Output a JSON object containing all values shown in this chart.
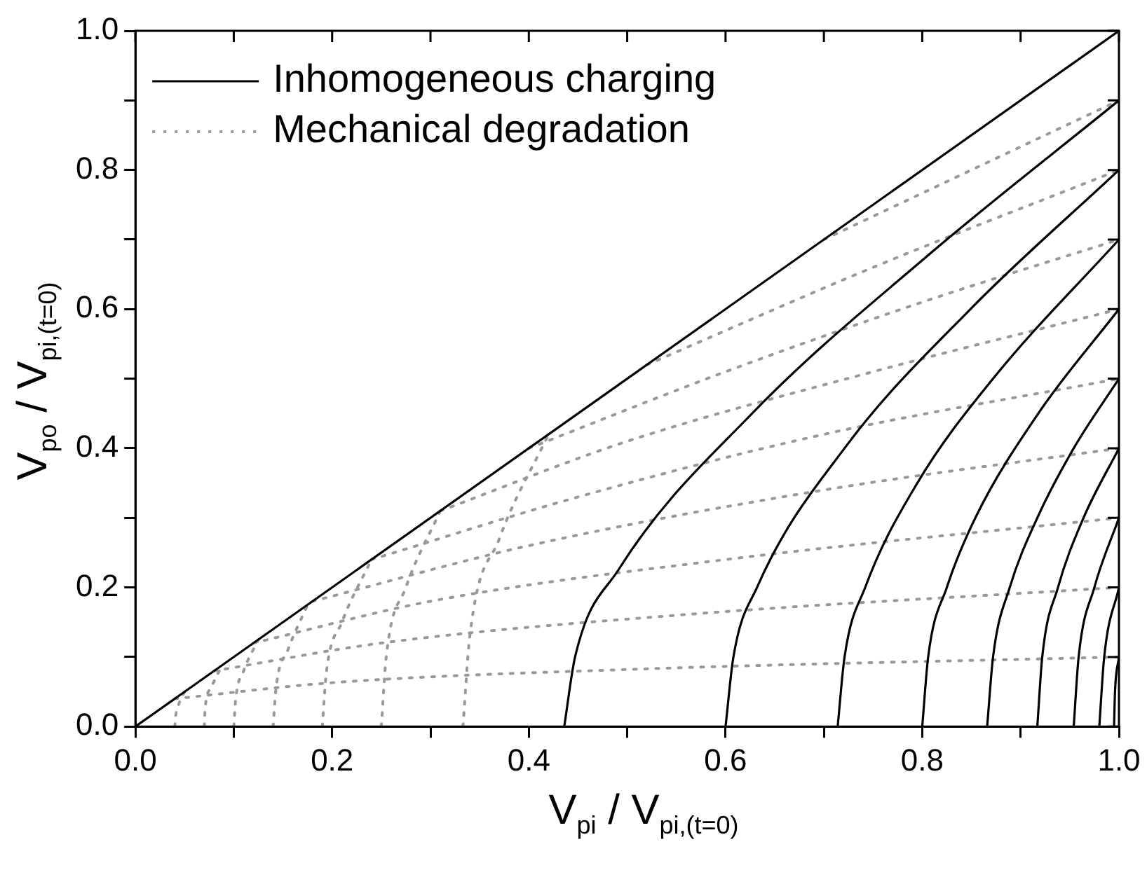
{
  "chart_data": {
    "type": "line",
    "xlabel": "V$_{pi}$ / V$_{pi,(t=0)}$",
    "ylabel": "V$_{po}$ / V$_{pi,(t=0)}$",
    "xlim": [
      0,
      1
    ],
    "ylim": [
      0,
      1
    ],
    "xticks": [
      {
        "value": 0,
        "label": "0.0"
      },
      {
        "value": 0.1,
        "label": null
      },
      {
        "value": 0.2,
        "label": "0.2"
      },
      {
        "value": 0.3,
        "label": null
      },
      {
        "value": 0.4,
        "label": "0.4"
      },
      {
        "value": 0.5,
        "label": null
      },
      {
        "value": 0.6,
        "label": "0.6"
      },
      {
        "value": 0.7,
        "label": null
      },
      {
        "value": 0.8,
        "label": "0.8"
      },
      {
        "value": 0.9,
        "label": null
      },
      {
        "value": 1,
        "label": "1.0"
      }
    ],
    "yticks": [
      {
        "value": 0,
        "label": "0.0"
      },
      {
        "value": 0.1,
        "label": null
      },
      {
        "value": 0.2,
        "label": "0.2"
      },
      {
        "value": 0.3,
        "label": null
      },
      {
        "value": 0.4,
        "label": "0.4"
      },
      {
        "value": 0.5,
        "label": null
      },
      {
        "value": 0.6,
        "label": "0.6"
      },
      {
        "value": 0.7,
        "label": null
      },
      {
        "value": 0.8,
        "label": "0.8"
      },
      {
        "value": 0.9,
        "label": null
      },
      {
        "value": 1,
        "label": "1.0"
      }
    ],
    "grid": false,
    "legend": "top left",
    "marker": "none",
    "series": [
      {
        "name": "Inhomogeneous charging",
        "color": "#000000",
        "line_style": "solid",
        "x": [
          0,
          1
        ],
        "values": [
          0,
          1
        ]
      },
      {
        "color": "#000000",
        "line_style": "solid",
        "x": [
          0.436,
          0.447,
          0.491,
          0.627,
          0.804,
          1
        ],
        "values": [
          0,
          0.1,
          0.225,
          0.45,
          0.675,
          0.9
        ]
      },
      {
        "color": "#000000",
        "line_style": "solid",
        "x": [
          0.6,
          0.608,
          0.632,
          0.721,
          0.849,
          1
        ],
        "values": [
          0,
          0.1,
          0.2,
          0.4,
          0.6,
          0.8
        ]
      },
      {
        "color": "#000000",
        "line_style": "solid",
        "x": [
          0.714,
          0.721,
          0.742,
          0.795,
          0.872,
          1
        ],
        "values": [
          0,
          0.1,
          0.2,
          0.35,
          0.5,
          0.7
        ]
      },
      {
        "color": "#000000",
        "line_style": "solid",
        "x": [
          0.8,
          0.806,
          0.825,
          0.854,
          0.918,
          1
        ],
        "values": [
          0,
          0.1,
          0.2,
          0.3,
          0.45,
          0.6
        ]
      },
      {
        "color": "#000000",
        "line_style": "solid",
        "x": [
          0.866,
          0.872,
          0.889,
          0.917,
          0.954,
          1
        ],
        "values": [
          0,
          0.1,
          0.2,
          0.3,
          0.4,
          0.5
        ]
      },
      {
        "color": "#000000",
        "line_style": "solid",
        "x": [
          0.917,
          0.922,
          0.938,
          0.964,
          1
        ],
        "values": [
          0,
          0.1,
          0.2,
          0.3,
          0.4
        ]
      },
      {
        "color": "#000000",
        "line_style": "solid",
        "x": [
          0.954,
          0.959,
          0.975,
          1
        ],
        "values": [
          0,
          0.1,
          0.2,
          0.3
        ]
      },
      {
        "color": "#000000",
        "line_style": "solid",
        "x": [
          0.98,
          0.985,
          1
        ],
        "values": [
          0,
          0.1,
          0.2
        ]
      },
      {
        "color": "#000000",
        "line_style": "solid",
        "x": [
          0.995,
          0.996,
          1
        ],
        "values": [
          0,
          0.05,
          0.1
        ]
      },
      {
        "name": "Mechanical degradation",
        "color": "#999999",
        "line_style": "dotted",
        "x": [
          0.7,
          0.85,
          1
        ],
        "values": [
          0.7,
          0.8,
          0.9
        ]
      },
      {
        "color": "#999999",
        "line_style": "dotted",
        "x": [
          0.52,
          0.75,
          1
        ],
        "values": [
          0.52,
          0.66,
          0.8
        ]
      },
      {
        "color": "#999999",
        "line_style": "dotted",
        "x": [
          0.4,
          0.6,
          0.8,
          1
        ],
        "values": [
          0.4,
          0.51,
          0.61,
          0.7
        ]
      },
      {
        "color": "#999999",
        "line_style": "dotted",
        "x": [
          0.31,
          0.5,
          0.75,
          1
        ],
        "values": [
          0.31,
          0.41,
          0.51,
          0.6
        ]
      },
      {
        "color": "#999999",
        "line_style": "dotted",
        "x": [
          0.24,
          0.45,
          0.7,
          1
        ],
        "values": [
          0.24,
          0.33,
          0.42,
          0.5
        ]
      },
      {
        "color": "#999999",
        "line_style": "dotted",
        "x": [
          0.18,
          0.4,
          0.7,
          1
        ],
        "values": [
          0.18,
          0.26,
          0.34,
          0.4
        ]
      },
      {
        "color": "#999999",
        "line_style": "dotted",
        "x": [
          0.12,
          0.3,
          0.6,
          1
        ],
        "values": [
          0.12,
          0.18,
          0.24,
          0.3
        ]
      },
      {
        "color": "#999999",
        "line_style": "dotted",
        "x": [
          0.08,
          0.25,
          0.55,
          1
        ],
        "values": [
          0.08,
          0.12,
          0.16,
          0.2
        ]
      },
      {
        "color": "#999999",
        "line_style": "dotted",
        "x": [
          0.04,
          0.2,
          0.5,
          1
        ],
        "values": [
          0.04,
          0.063,
          0.082,
          0.1
        ]
      },
      {
        "color": "#999999",
        "line_style": "dotted",
        "x": [
          0.333,
          0.34,
          0.37,
          0.42
        ],
        "values": [
          0,
          0.13,
          0.27,
          0.42
        ]
      },
      {
        "color": "#999999",
        "line_style": "dotted",
        "x": [
          0.25,
          0.255,
          0.275,
          0.31
        ],
        "values": [
          0,
          0.1,
          0.2,
          0.31
        ]
      },
      {
        "color": "#999999",
        "line_style": "dotted",
        "x": [
          0.19,
          0.194,
          0.21,
          0.24
        ],
        "values": [
          0,
          0.076,
          0.15,
          0.24
        ]
      },
      {
        "color": "#999999",
        "line_style": "dotted",
        "x": [
          0.14,
          0.143,
          0.155,
          0.175
        ],
        "values": [
          0,
          0.056,
          0.11,
          0.175
        ]
      },
      {
        "color": "#999999",
        "line_style": "dotted",
        "x": [
          0.1,
          0.102,
          0.11,
          0.125
        ],
        "values": [
          0,
          0.04,
          0.08,
          0.125
        ]
      },
      {
        "color": "#999999",
        "line_style": "dotted",
        "x": [
          0.07,
          0.071,
          0.077,
          0.088
        ],
        "values": [
          0,
          0.028,
          0.056,
          0.088
        ]
      },
      {
        "color": "#999999",
        "line_style": "dotted",
        "x": [
          0.04,
          0.041,
          0.044,
          0.05
        ],
        "values": [
          0,
          0.016,
          0.032,
          0.05
        ]
      }
    ]
  }
}
